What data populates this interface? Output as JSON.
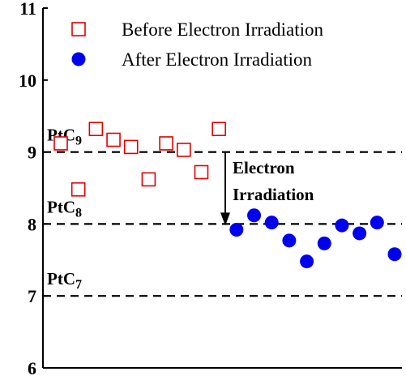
{
  "chart_data": {
    "type": "scatter",
    "ylim": [
      6,
      11
    ],
    "yticks": [
      "6",
      "7",
      "8",
      "9",
      "10",
      "11"
    ],
    "xlabel": "",
    "ylabel": "",
    "grid": false,
    "legend": {
      "placement": "top-right",
      "entries": [
        {
          "name": "Before Electron Irradiation",
          "marker": "open-square",
          "color": "#e00000"
        },
        {
          "name": "After Electron Irradiation",
          "marker": "filled-circle",
          "color": "#0000ee"
        }
      ]
    },
    "series": [
      {
        "name": "Before Electron Irradiation",
        "points": [
          {
            "x": 1,
            "y": 9.12
          },
          {
            "x": 2,
            "y": 8.48
          },
          {
            "x": 3,
            "y": 9.32
          },
          {
            "x": 4,
            "y": 9.17
          },
          {
            "x": 5,
            "y": 9.07
          },
          {
            "x": 6,
            "y": 8.62
          },
          {
            "x": 7,
            "y": 9.12
          },
          {
            "x": 8,
            "y": 9.03
          },
          {
            "x": 9,
            "y": 8.72
          },
          {
            "x": 10,
            "y": 9.32
          }
        ]
      },
      {
        "name": "After Electron Irradiation",
        "points": [
          {
            "x": 11,
            "y": 7.92
          },
          {
            "x": 12,
            "y": 8.12
          },
          {
            "x": 13,
            "y": 8.02
          },
          {
            "x": 14,
            "y": 7.77
          },
          {
            "x": 15,
            "y": 7.48
          },
          {
            "x": 16,
            "y": 7.73
          },
          {
            "x": 17,
            "y": 7.98
          },
          {
            "x": 18,
            "y": 7.87
          },
          {
            "x": 19,
            "y": 8.02
          },
          {
            "x": 20,
            "y": 7.58
          }
        ]
      }
    ],
    "reference_lines": [
      {
        "y": 9,
        "label_main": "PtC",
        "label_sub": "9"
      },
      {
        "y": 8,
        "label_main": "PtC",
        "label_sub": "8"
      },
      {
        "y": 7,
        "label_main": "PtC",
        "label_sub": "7"
      }
    ],
    "annotation": {
      "lines": [
        "Electron",
        "Irradiation"
      ],
      "from_y": 9,
      "to_y": 8
    }
  }
}
